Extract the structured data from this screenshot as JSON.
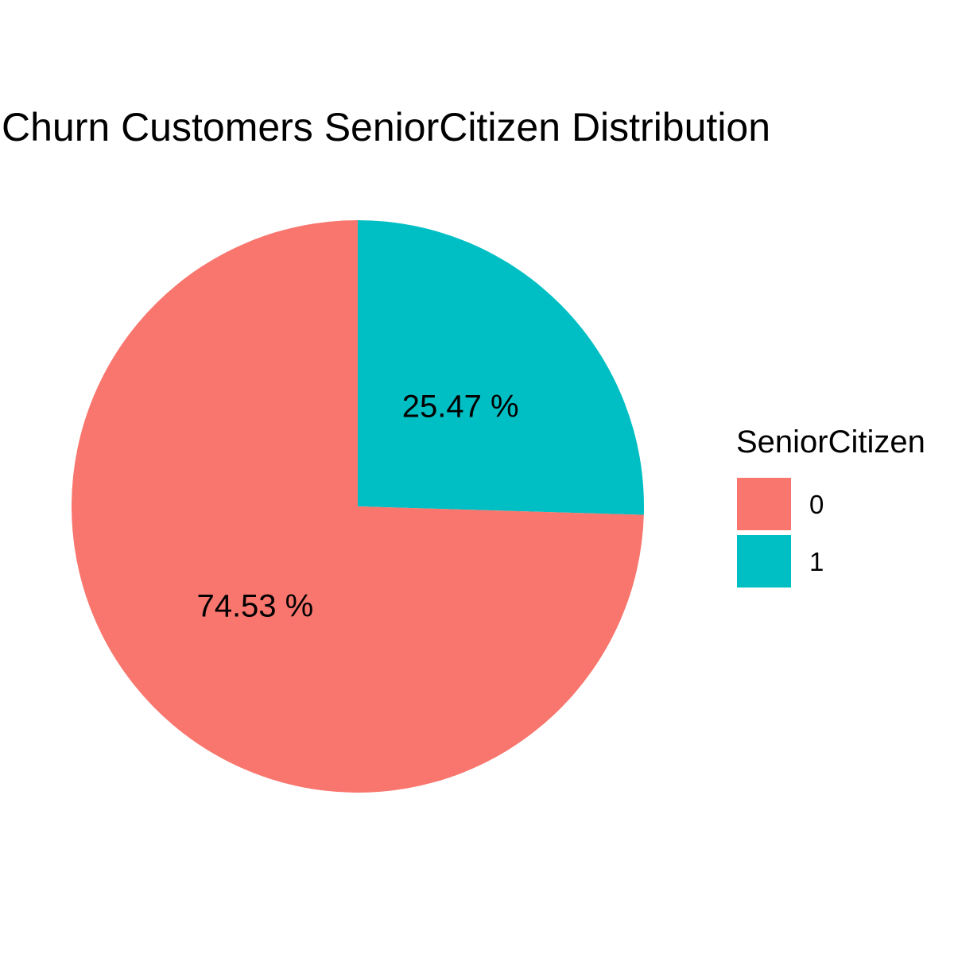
{
  "chart_data": {
    "type": "pie",
    "title": "Churn Customers SeniorCitizen Distribution",
    "legend": {
      "title": "SeniorCitizen",
      "position": "right"
    },
    "categories": [
      "0",
      "1"
    ],
    "values": [
      74.53,
      25.47
    ],
    "data_labels": [
      "74.53 %",
      "25.47 %"
    ],
    "colors": [
      "#F8766D",
      "#00BFC4"
    ]
  }
}
